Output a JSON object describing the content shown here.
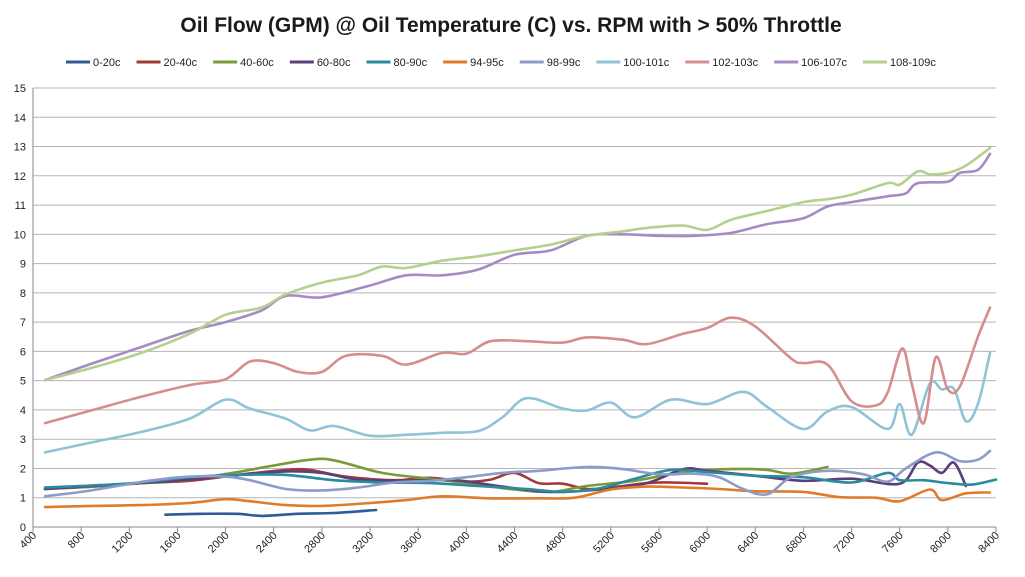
{
  "chart_data": {
    "type": "line",
    "title": "Oil Flow (GPM) @ Oil Temperature (C) vs. RPM with > 50% Throttle",
    "xlabel": "",
    "ylabel": "",
    "xlim": [
      400,
      8400
    ],
    "ylim": [
      0,
      15
    ],
    "xticks": [
      400,
      800,
      1200,
      1600,
      2000,
      2400,
      2800,
      3200,
      3600,
      4000,
      4400,
      4800,
      5200,
      5600,
      6000,
      6400,
      6800,
      7200,
      7600,
      8000,
      8400
    ],
    "yticks": [
      0,
      1,
      2,
      3,
      4,
      5,
      6,
      7,
      8,
      9,
      10,
      11,
      12,
      13,
      14,
      15
    ],
    "grid": "horizontal",
    "legend": "top",
    "series": [
      {
        "name": "0-20c",
        "color": "#2E5C99",
        "points": [
          [
            1500,
            0.42
          ],
          [
            1800,
            0.45
          ],
          [
            2100,
            0.45
          ],
          [
            2300,
            0.38
          ],
          [
            2600,
            0.45
          ],
          [
            2900,
            0.48
          ],
          [
            3250,
            0.58
          ]
        ]
      },
      {
        "name": "20-40c",
        "color": "#A33A3A",
        "points": [
          [
            500,
            1.3
          ],
          [
            900,
            1.38
          ],
          [
            1300,
            1.5
          ],
          [
            1700,
            1.58
          ],
          [
            2100,
            1.78
          ],
          [
            2500,
            1.95
          ],
          [
            2700,
            1.95
          ],
          [
            3000,
            1.72
          ],
          [
            3400,
            1.6
          ],
          [
            3700,
            1.68
          ],
          [
            4000,
            1.55
          ],
          [
            4200,
            1.62
          ],
          [
            4400,
            1.85
          ],
          [
            4600,
            1.5
          ],
          [
            4800,
            1.48
          ],
          [
            5000,
            1.3
          ],
          [
            5200,
            1.35
          ],
          [
            5500,
            1.5
          ],
          [
            5700,
            1.52
          ],
          [
            6000,
            1.48
          ]
        ]
      },
      {
        "name": "40-60c",
        "color": "#7A9A3A",
        "points": [
          [
            500,
            1.32
          ],
          [
            900,
            1.38
          ],
          [
            1300,
            1.5
          ],
          [
            1700,
            1.62
          ],
          [
            2100,
            1.88
          ],
          [
            2400,
            2.1
          ],
          [
            2700,
            2.3
          ],
          [
            2900,
            2.28
          ],
          [
            3300,
            1.85
          ],
          [
            3700,
            1.65
          ],
          [
            4000,
            1.5
          ],
          [
            4400,
            1.28
          ],
          [
            4700,
            1.2
          ],
          [
            5000,
            1.4
          ],
          [
            5400,
            1.58
          ],
          [
            5800,
            1.88
          ],
          [
            6200,
            1.98
          ],
          [
            6500,
            1.95
          ],
          [
            6700,
            1.82
          ],
          [
            7000,
            2.05
          ]
        ]
      },
      {
        "name": "60-80c",
        "color": "#5A3F7A",
        "points": [
          [
            500,
            1.3
          ],
          [
            900,
            1.4
          ],
          [
            1300,
            1.5
          ],
          [
            1700,
            1.62
          ],
          [
            2100,
            1.78
          ],
          [
            2500,
            1.9
          ],
          [
            2800,
            1.85
          ],
          [
            3100,
            1.62
          ],
          [
            3500,
            1.58
          ],
          [
            3900,
            1.6
          ],
          [
            4300,
            1.38
          ],
          [
            4700,
            1.2
          ],
          [
            5100,
            1.28
          ],
          [
            5500,
            1.5
          ],
          [
            5800,
            1.98
          ],
          [
            6000,
            1.92
          ],
          [
            6400,
            1.75
          ],
          [
            6800,
            1.58
          ],
          [
            7200,
            1.65
          ],
          [
            7600,
            1.48
          ],
          [
            7750,
            2.2
          ],
          [
            7850,
            2.1
          ],
          [
            7950,
            1.85
          ],
          [
            8050,
            2.2
          ],
          [
            8150,
            1.4
          ]
        ]
      },
      {
        "name": "80-90c",
        "color": "#2A8A9E",
        "points": [
          [
            500,
            1.35
          ],
          [
            900,
            1.42
          ],
          [
            1300,
            1.52
          ],
          [
            1700,
            1.7
          ],
          [
            2100,
            1.78
          ],
          [
            2500,
            1.78
          ],
          [
            2900,
            1.6
          ],
          [
            3300,
            1.52
          ],
          [
            3700,
            1.5
          ],
          [
            4100,
            1.4
          ],
          [
            4500,
            1.3
          ],
          [
            4800,
            1.2
          ],
          [
            5100,
            1.32
          ],
          [
            5400,
            1.65
          ],
          [
            5700,
            1.95
          ],
          [
            6000,
            1.88
          ],
          [
            6400,
            1.75
          ],
          [
            6800,
            1.7
          ],
          [
            7200,
            1.52
          ],
          [
            7500,
            1.85
          ],
          [
            7600,
            1.6
          ],
          [
            7800,
            1.6
          ],
          [
            8000,
            1.5
          ],
          [
            8200,
            1.45
          ],
          [
            8400,
            1.62
          ]
        ]
      },
      {
        "name": "94-95c",
        "color": "#E07B2A",
        "points": [
          [
            500,
            0.68
          ],
          [
            900,
            0.72
          ],
          [
            1300,
            0.75
          ],
          [
            1700,
            0.82
          ],
          [
            2000,
            0.95
          ],
          [
            2200,
            0.88
          ],
          [
            2500,
            0.75
          ],
          [
            2800,
            0.72
          ],
          [
            3200,
            0.82
          ],
          [
            3500,
            0.92
          ],
          [
            3800,
            1.05
          ],
          [
            4200,
            0.98
          ],
          [
            4600,
            0.98
          ],
          [
            4900,
            1.0
          ],
          [
            5200,
            1.28
          ],
          [
            5500,
            1.38
          ],
          [
            5800,
            1.35
          ],
          [
            6100,
            1.3
          ],
          [
            6400,
            1.22
          ],
          [
            6800,
            1.2
          ],
          [
            7100,
            1.02
          ],
          [
            7400,
            1.0
          ],
          [
            7600,
            0.88
          ],
          [
            7850,
            1.28
          ],
          [
            7950,
            0.92
          ],
          [
            8150,
            1.15
          ],
          [
            8350,
            1.18
          ]
        ]
      },
      {
        "name": "98-99c",
        "color": "#8C9BC8",
        "points": [
          [
            500,
            1.05
          ],
          [
            800,
            1.2
          ],
          [
            1100,
            1.4
          ],
          [
            1400,
            1.6
          ],
          [
            1700,
            1.72
          ],
          [
            2000,
            1.72
          ],
          [
            2200,
            1.6
          ],
          [
            2500,
            1.3
          ],
          [
            2800,
            1.25
          ],
          [
            3100,
            1.35
          ],
          [
            3400,
            1.52
          ],
          [
            3700,
            1.58
          ],
          [
            4000,
            1.7
          ],
          [
            4300,
            1.85
          ],
          [
            4600,
            1.92
          ],
          [
            5000,
            2.05
          ],
          [
            5300,
            1.98
          ],
          [
            5600,
            1.8
          ],
          [
            5900,
            1.82
          ],
          [
            6100,
            1.7
          ],
          [
            6300,
            1.3
          ],
          [
            6500,
            1.12
          ],
          [
            6700,
            1.7
          ],
          [
            7000,
            1.92
          ],
          [
            7300,
            1.8
          ],
          [
            7500,
            1.55
          ],
          [
            7650,
            2.0
          ],
          [
            7900,
            2.55
          ],
          [
            8100,
            2.25
          ],
          [
            8250,
            2.3
          ],
          [
            8350,
            2.6
          ]
        ]
      },
      {
        "name": "100-101c",
        "color": "#8EC3D8",
        "points": [
          [
            500,
            2.55
          ],
          [
            900,
            2.9
          ],
          [
            1300,
            3.25
          ],
          [
            1700,
            3.7
          ],
          [
            2000,
            4.35
          ],
          [
            2200,
            4.05
          ],
          [
            2500,
            3.7
          ],
          [
            2700,
            3.3
          ],
          [
            2900,
            3.45
          ],
          [
            3200,
            3.12
          ],
          [
            3500,
            3.15
          ],
          [
            3800,
            3.22
          ],
          [
            4100,
            3.28
          ],
          [
            4300,
            3.75
          ],
          [
            4500,
            4.4
          ],
          [
            4800,
            4.05
          ],
          [
            5000,
            3.98
          ],
          [
            5200,
            4.25
          ],
          [
            5400,
            3.75
          ],
          [
            5700,
            4.35
          ],
          [
            6000,
            4.2
          ],
          [
            6300,
            4.62
          ],
          [
            6500,
            4.1
          ],
          [
            6800,
            3.35
          ],
          [
            7000,
            3.95
          ],
          [
            7200,
            4.1
          ],
          [
            7500,
            3.35
          ],
          [
            7600,
            4.2
          ],
          [
            7700,
            3.15
          ],
          [
            7850,
            4.9
          ],
          [
            7950,
            4.7
          ],
          [
            8050,
            4.72
          ],
          [
            8150,
            3.62
          ],
          [
            8250,
            4.2
          ],
          [
            8350,
            5.95
          ]
        ]
      },
      {
        "name": "102-103c",
        "color": "#D48E8E",
        "points": [
          [
            500,
            3.55
          ],
          [
            900,
            4.0
          ],
          [
            1300,
            4.45
          ],
          [
            1700,
            4.85
          ],
          [
            2000,
            5.05
          ],
          [
            2200,
            5.65
          ],
          [
            2400,
            5.6
          ],
          [
            2600,
            5.3
          ],
          [
            2800,
            5.3
          ],
          [
            3000,
            5.85
          ],
          [
            3300,
            5.85
          ],
          [
            3500,
            5.55
          ],
          [
            3800,
            5.95
          ],
          [
            4000,
            5.92
          ],
          [
            4200,
            6.35
          ],
          [
            4500,
            6.35
          ],
          [
            4800,
            6.3
          ],
          [
            5000,
            6.48
          ],
          [
            5300,
            6.4
          ],
          [
            5500,
            6.25
          ],
          [
            5800,
            6.6
          ],
          [
            6000,
            6.8
          ],
          [
            6200,
            7.15
          ],
          [
            6400,
            6.85
          ],
          [
            6700,
            5.75
          ],
          [
            6800,
            5.6
          ],
          [
            7000,
            5.55
          ],
          [
            7200,
            4.3
          ],
          [
            7400,
            4.15
          ],
          [
            7500,
            4.6
          ],
          [
            7620,
            6.1
          ],
          [
            7700,
            4.9
          ],
          [
            7800,
            3.55
          ],
          [
            7900,
            5.8
          ],
          [
            8000,
            4.7
          ],
          [
            8100,
            4.8
          ],
          [
            8250,
            6.5
          ],
          [
            8350,
            7.5
          ]
        ]
      },
      {
        "name": "106-107c",
        "color": "#A58BC4",
        "points": [
          [
            500,
            5.02
          ],
          [
            900,
            5.6
          ],
          [
            1300,
            6.15
          ],
          [
            1700,
            6.7
          ],
          [
            2000,
            7.0
          ],
          [
            2300,
            7.4
          ],
          [
            2500,
            7.9
          ],
          [
            2800,
            7.85
          ],
          [
            3200,
            8.25
          ],
          [
            3500,
            8.6
          ],
          [
            3800,
            8.6
          ],
          [
            4100,
            8.8
          ],
          [
            4400,
            9.3
          ],
          [
            4700,
            9.45
          ],
          [
            5000,
            9.95
          ],
          [
            5300,
            10.0
          ],
          [
            5600,
            9.95
          ],
          [
            5900,
            9.95
          ],
          [
            6200,
            10.05
          ],
          [
            6500,
            10.35
          ],
          [
            6800,
            10.55
          ],
          [
            7000,
            10.95
          ],
          [
            7200,
            11.1
          ],
          [
            7500,
            11.3
          ],
          [
            7650,
            11.4
          ],
          [
            7750,
            11.75
          ],
          [
            8000,
            11.8
          ],
          [
            8100,
            12.1
          ],
          [
            8250,
            12.2
          ],
          [
            8350,
            12.75
          ]
        ]
      },
      {
        "name": "108-109c",
        "color": "#B5D08D",
        "points": [
          [
            500,
            5.02
          ],
          [
            900,
            5.45
          ],
          [
            1300,
            5.95
          ],
          [
            1700,
            6.6
          ],
          [
            2000,
            7.25
          ],
          [
            2300,
            7.5
          ],
          [
            2500,
            7.95
          ],
          [
            2800,
            8.35
          ],
          [
            3100,
            8.6
          ],
          [
            3300,
            8.9
          ],
          [
            3500,
            8.85
          ],
          [
            3800,
            9.1
          ],
          [
            4100,
            9.25
          ],
          [
            4400,
            9.45
          ],
          [
            4700,
            9.65
          ],
          [
            5000,
            9.95
          ],
          [
            5300,
            10.1
          ],
          [
            5500,
            10.22
          ],
          [
            5800,
            10.3
          ],
          [
            6000,
            10.15
          ],
          [
            6200,
            10.5
          ],
          [
            6500,
            10.8
          ],
          [
            6800,
            11.1
          ],
          [
            7000,
            11.2
          ],
          [
            7200,
            11.35
          ],
          [
            7500,
            11.75
          ],
          [
            7600,
            11.7
          ],
          [
            7750,
            12.15
          ],
          [
            7850,
            12.05
          ],
          [
            8000,
            12.1
          ],
          [
            8150,
            12.35
          ],
          [
            8350,
            12.95
          ]
        ]
      }
    ]
  }
}
